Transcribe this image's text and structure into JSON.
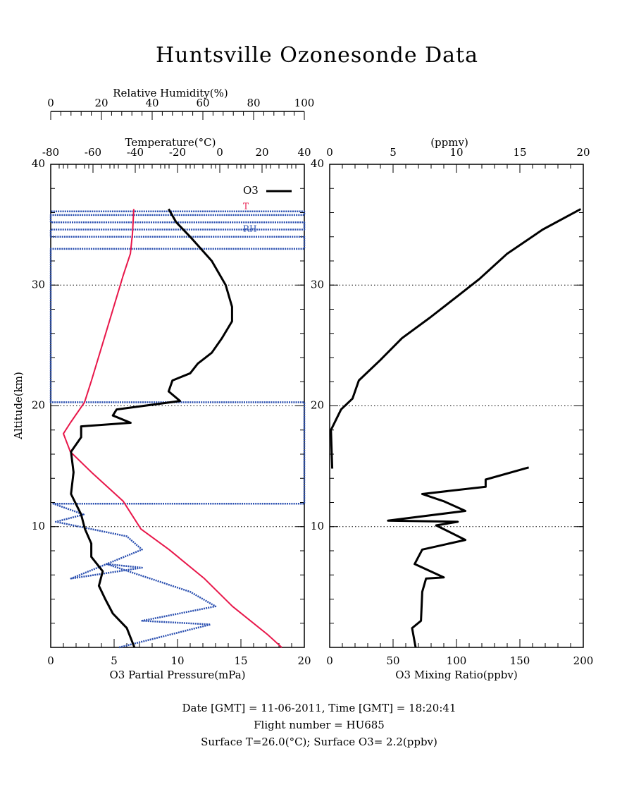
{
  "chart_data": [
    {
      "type": "line",
      "title": "Huntsville Ozonesonde Data",
      "notes": [
        "Date [GMT] = 11-06-2011,  Time [GMT] = 18:20:41",
        "Flight number = HU685",
        "Surface T=26.0(°C); Surface O3= 2.2(ppbv)"
      ],
      "ylabel": "Altitude(km)",
      "ylim": [
        0,
        40
      ],
      "yticks": [
        10,
        20,
        30,
        40
      ],
      "grid": true,
      "xlabel": "O3 Partial Pressure(mPa)",
      "xlim": [
        0,
        20
      ],
      "xticks": [
        0,
        5,
        10,
        15,
        20
      ],
      "x2label": "Temperature(°C)",
      "x2lim": [
        -80,
        40
      ],
      "x2ticks": [
        -80,
        -60,
        -40,
        -20,
        0,
        20,
        40
      ],
      "x3label": "Relative Humidity(%)",
      "x3lim": [
        0,
        100
      ],
      "x3ticks": [
        0,
        20,
        40,
        60,
        80,
        100
      ],
      "series": [
        {
          "name": "RH",
          "color": "#2a4fb0",
          "axis": "x3",
          "values": [
            27,
            63,
            36,
            65,
            55,
            22,
            36,
            8,
            36,
            30,
            2,
            13,
            1,
            100,
            100,
            0,
            0,
            100,
            100,
            0,
            0,
            100,
            100,
            0,
            0,
            100,
            100,
            0
          ],
          "altitude": [
            0,
            1.9,
            2.2,
            3.4,
            4.6,
            6.9,
            6.6,
            5.7,
            8.1,
            9.2,
            10.4,
            11.0,
            11.9,
            11.9,
            20.3,
            20.3,
            33,
            33,
            34,
            34,
            34.6,
            34.6,
            35.2,
            35.2,
            35.8,
            35.8,
            36.1,
            36.1
          ]
        },
        {
          "name": "T",
          "color": "#e8174a",
          "axis": "x2",
          "values": [
            29.3,
            22.7,
            6,
            -7.3,
            -24,
            -37.3,
            -45.7,
            -60.7,
            -70.7,
            -74,
            -70.7,
            -64,
            -60.7,
            -55.7,
            -50.7,
            -45.7,
            -42.3,
            -41.3,
            -40.7
          ],
          "altitude": [
            0,
            1.05,
            3.4,
            5.7,
            8.1,
            9.8,
            12.1,
            14.5,
            16.2,
            17.7,
            18.6,
            20.3,
            22.1,
            25.0,
            27.9,
            30.8,
            32.6,
            34.3,
            36.3
          ]
        },
        {
          "name": "O3",
          "color": "#000000",
          "axis": "x",
          "values": [
            6.6,
            6.0,
            4.9,
            4.3,
            3.8,
            4.1,
            3.2,
            3.2,
            2.7,
            2.4,
            1.6,
            1.8,
            1.6,
            2.4,
            2.4,
            6.3,
            4.9,
            5.2,
            10.2,
            9.3,
            9.6,
            11.0,
            11.6,
            12.7,
            13.5,
            14.3,
            14.3,
            13.8,
            12.7,
            11.0,
            9.9,
            9.3
          ],
          "altitude": [
            0,
            1.6,
            2.8,
            4.0,
            5.1,
            6.3,
            7.5,
            8.6,
            9.8,
            11.0,
            12.7,
            14.5,
            16.2,
            17.4,
            18.3,
            18.6,
            19.2,
            19.7,
            20.4,
            21.2,
            22.1,
            22.7,
            23.5,
            24.4,
            25.6,
            27.0,
            28.2,
            30.0,
            32.0,
            34.0,
            35.2,
            36.3
          ]
        }
      ]
    },
    {
      "type": "line",
      "ylim": [
        0,
        40
      ],
      "yticks": [
        10,
        20,
        30,
        40
      ],
      "grid": true,
      "xlabel": "O3 Mixing Ratio(ppbv)",
      "xlim": [
        0,
        200
      ],
      "xticks": [
        0,
        50,
        100,
        150,
        200
      ],
      "x2label": "(ppmv)",
      "x2lim": [
        0,
        20
      ],
      "x2ticks": [
        0,
        5,
        10,
        15,
        20
      ],
      "series": [
        {
          "color": "#000000",
          "axis": "x",
          "values": [
            67.8,
            65,
            72,
            73,
            76,
            90,
            67,
            73,
            107,
            84,
            101,
            46,
            107,
            90,
            73,
            123,
            123,
            157,
            null,
            2,
            1,
            9,
            18,
            23,
            40,
            57,
            79,
            101,
            118,
            140,
            168,
            198
          ],
          "altitude": [
            0,
            1.6,
            2.2,
            4.6,
            5.7,
            5.8,
            6.9,
            8.1,
            8.9,
            10.1,
            10.4,
            10.5,
            11.3,
            12.1,
            12.7,
            13.3,
            13.9,
            14.9,
            null,
            14.8,
            18.0,
            19.7,
            20.6,
            22.1,
            23.8,
            25.6,
            27.3,
            29.1,
            30.5,
            32.6,
            34.6,
            36.3
          ]
        }
      ]
    }
  ]
}
